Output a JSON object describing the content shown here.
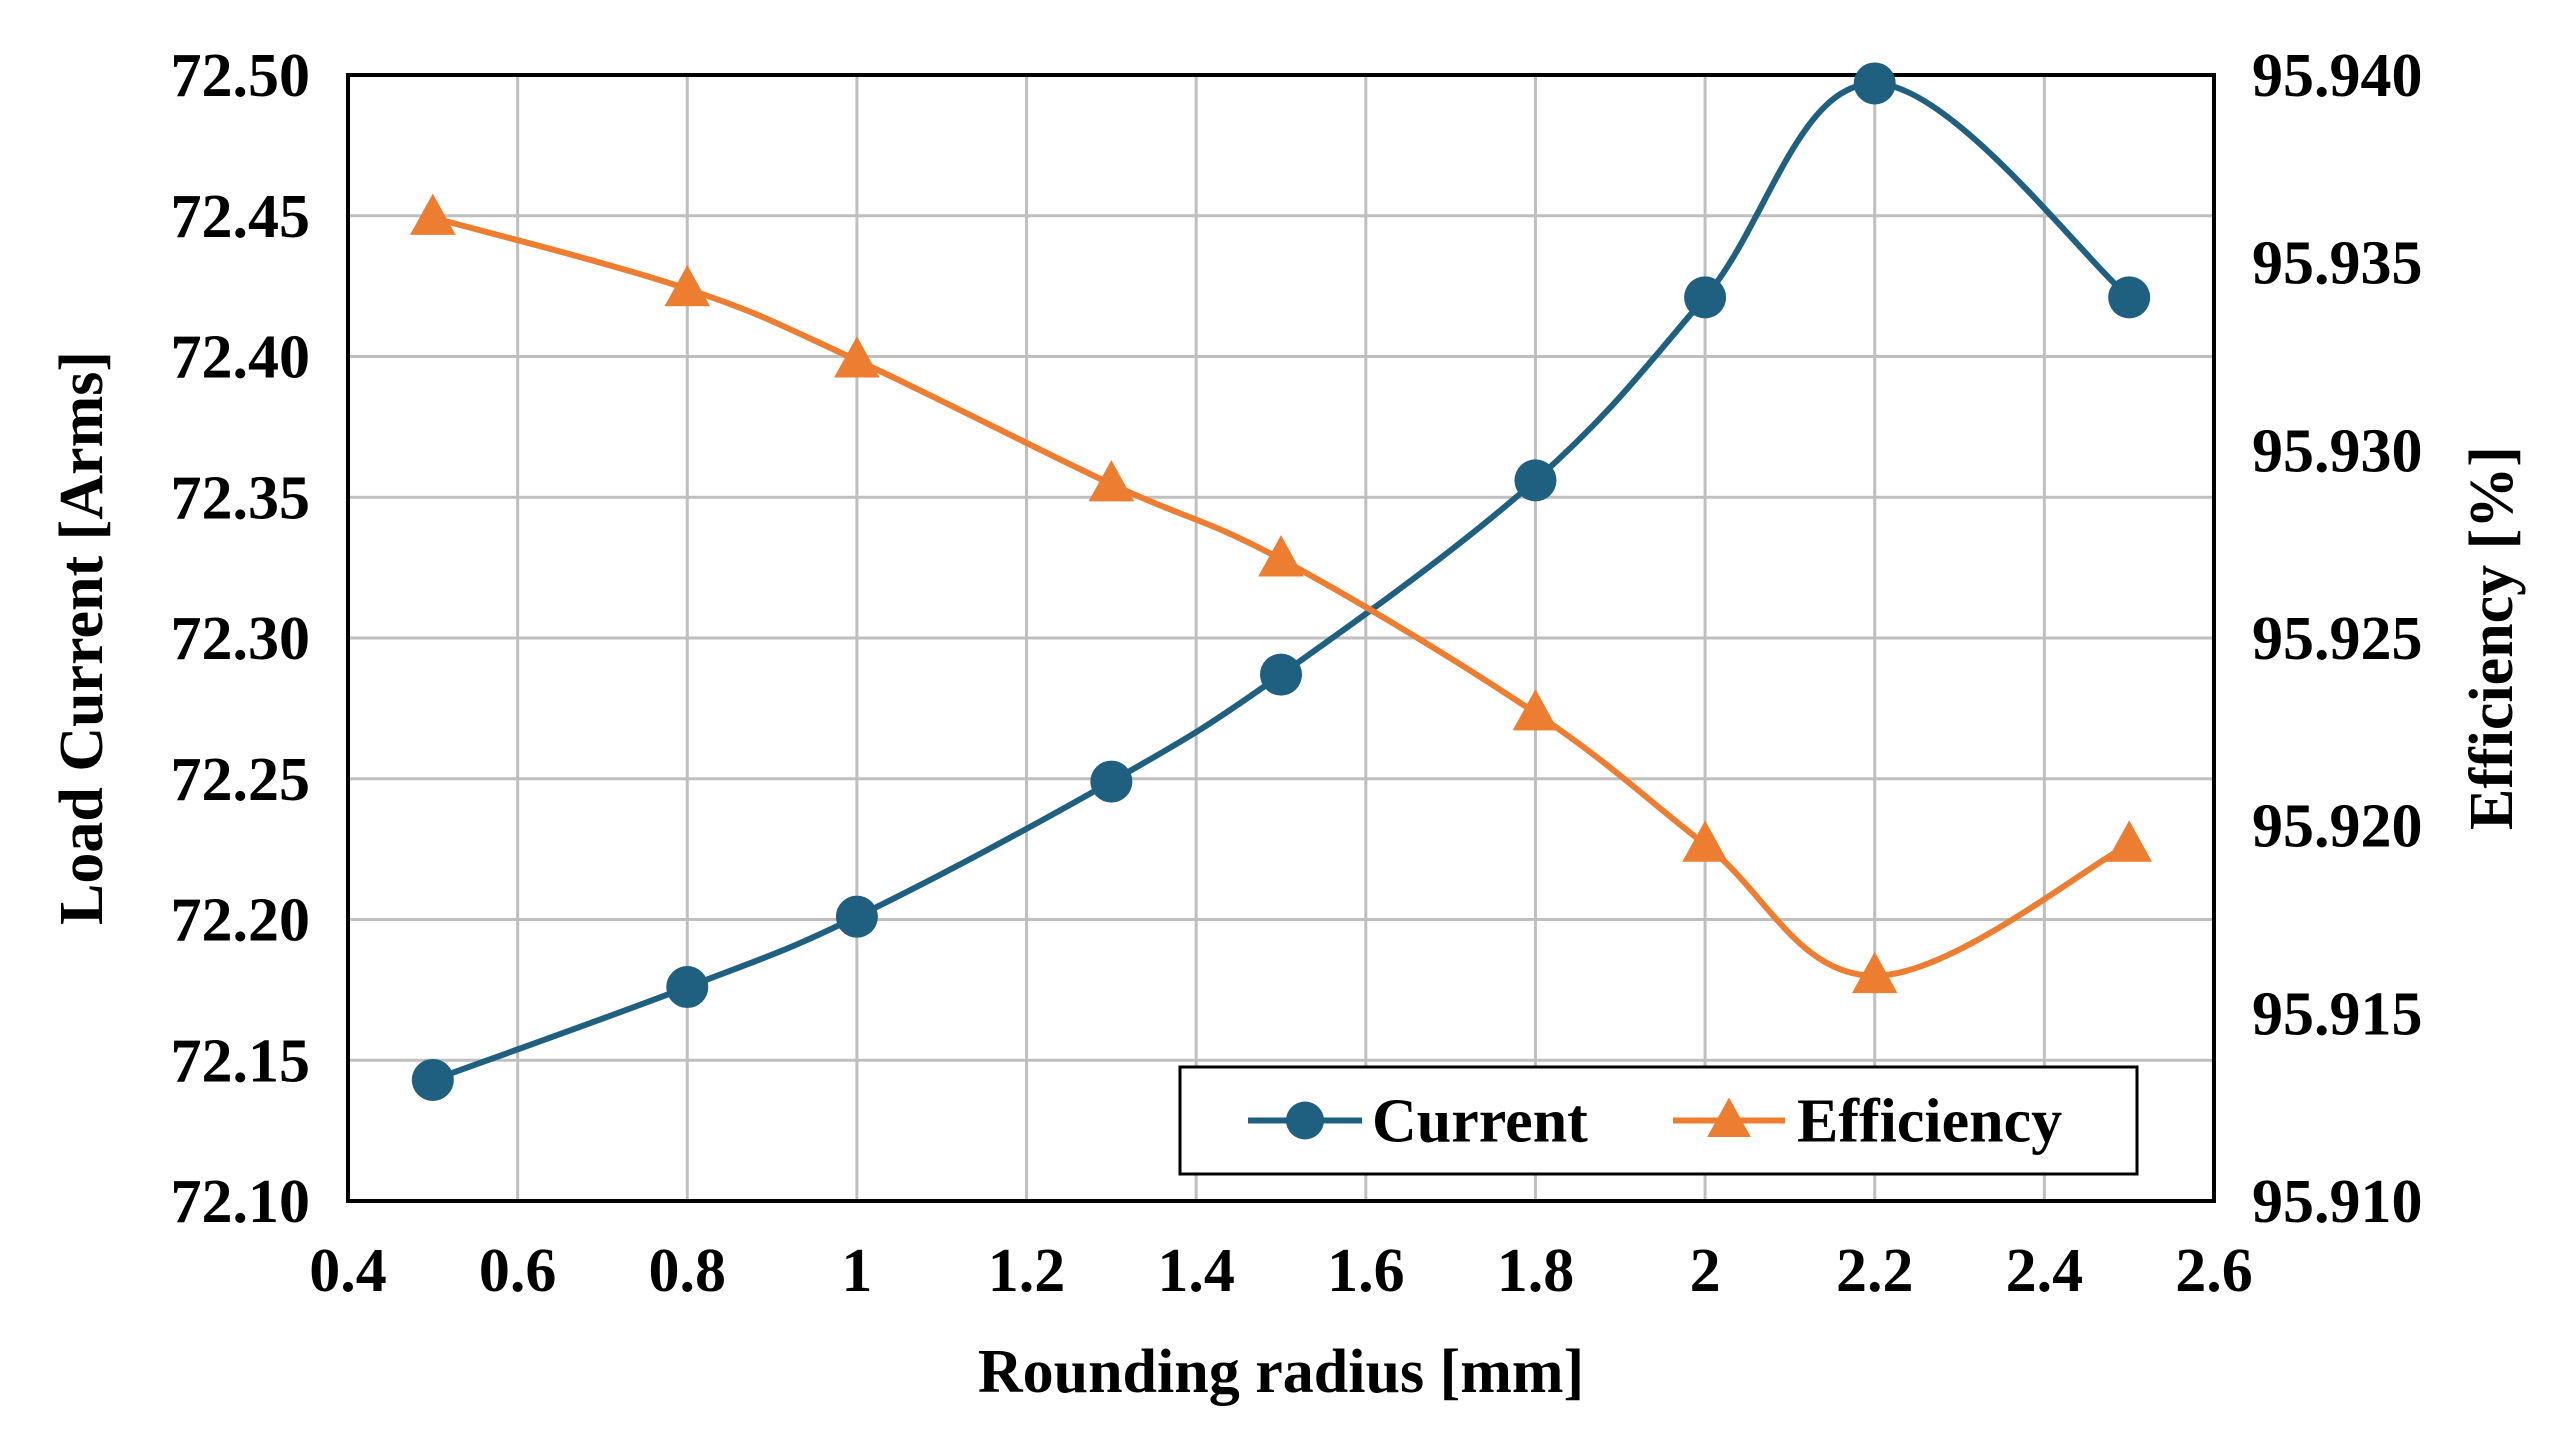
{
  "chart_data": {
    "type": "line",
    "title": "",
    "xlabel": "Rounding radius [mm]",
    "ylabel": "Load Current [Arms]",
    "y2label": "Efficiency [%]",
    "xlim": [
      0.4,
      2.6
    ],
    "ylim": [
      72.1,
      72.5
    ],
    "y2lim": [
      95.91,
      95.94
    ],
    "x_ticks": [
      "0.4",
      "0.6",
      "0.8",
      "1",
      "1.2",
      "1.4",
      "1.6",
      "1.8",
      "2",
      "2.2",
      "2.4",
      "2.6"
    ],
    "y_ticks": [
      "72.10",
      "72.15",
      "72.20",
      "72.25",
      "72.30",
      "72.35",
      "72.40",
      "72.45",
      "72.50"
    ],
    "y2_ticks": [
      "95.910",
      "95.915",
      "95.920",
      "95.925",
      "95.930",
      "95.935",
      "95.940"
    ],
    "grid": true,
    "legend_position": "bottom-right",
    "series": [
      {
        "name": "Current",
        "axis": "left",
        "color": "#1f5f7f",
        "marker": "circle",
        "x": [
          0.5,
          0.8,
          1.0,
          1.3,
          1.5,
          1.8,
          2.0,
          2.2,
          2.5
        ],
        "values": [
          72.143,
          72.176,
          72.201,
          72.249,
          72.287,
          72.356,
          72.421,
          72.497,
          72.421
        ]
      },
      {
        "name": "Efficiency",
        "axis": "right",
        "color": "#ed7d31",
        "marker": "triangle",
        "x": [
          0.5,
          0.8,
          1.0,
          1.3,
          1.5,
          1.8,
          2.0,
          2.2,
          2.5
        ],
        "values": [
          95.9362,
          95.9343,
          95.9324,
          95.9291,
          95.9271,
          95.923,
          95.9195,
          95.916,
          95.9195
        ]
      }
    ]
  }
}
